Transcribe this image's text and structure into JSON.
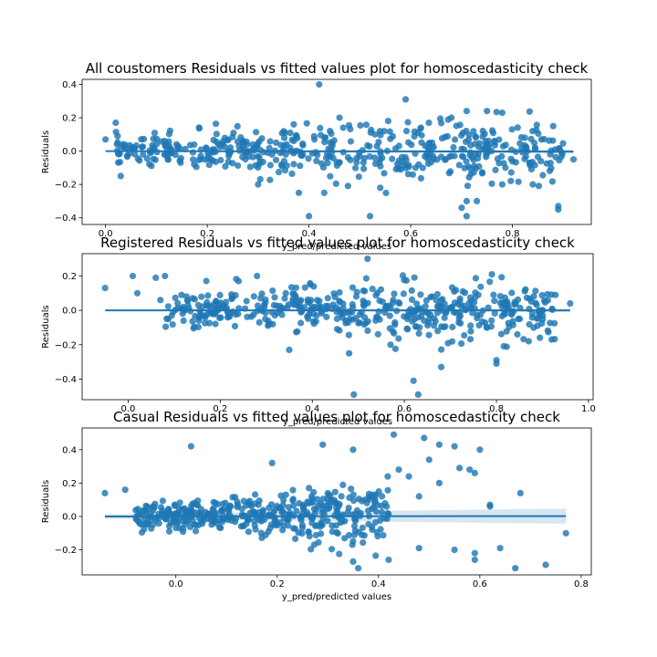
{
  "chart_data": [
    {
      "type": "scatter",
      "title": "All coustomers Residuals vs fitted values plot for homoscedasticity check",
      "xlabel": "y_pred/predicted values",
      "ylabel": "Residuals",
      "xlim": [
        -0.046,
        0.955
      ],
      "ylim": [
        -0.44,
        0.43
      ],
      "xticks": [
        0.0,
        0.2,
        0.4,
        0.6,
        0.8
      ],
      "yticks": [
        -0.4,
        -0.2,
        0.0,
        0.2,
        0.4
      ],
      "fit_line": {
        "x": [
          0.0,
          0.92
        ],
        "y": [
          0.0,
          -0.003
        ],
        "ci": 0.012
      },
      "color": "#1f77b4",
      "highlight_points": [
        [
          0.0,
          0.07
        ],
        [
          0.02,
          0.17
        ],
        [
          0.42,
          0.4
        ],
        [
          0.59,
          0.31
        ],
        [
          0.4,
          -0.39
        ],
        [
          0.52,
          -0.39
        ],
        [
          0.7,
          -0.34
        ],
        [
          0.71,
          -0.39
        ],
        [
          0.71,
          -0.3
        ],
        [
          0.73,
          -0.3
        ],
        [
          0.89,
          -0.33
        ],
        [
          0.89,
          -0.35
        ],
        [
          0.92,
          -0.05
        ],
        [
          0.75,
          0.24
        ],
        [
          0.78,
          0.23
        ],
        [
          0.71,
          0.24
        ],
        [
          0.54,
          -0.22
        ],
        [
          0.46,
          0.2
        ],
        [
          0.37,
          0.16
        ],
        [
          0.38,
          -0.25
        ],
        [
          0.43,
          -0.25
        ],
        [
          0.3,
          -0.2
        ],
        [
          0.88,
          0.15
        ],
        [
          0.84,
          -0.2
        ],
        [
          0.78,
          -0.2
        ],
        [
          0.68,
          0.2
        ],
        [
          0.62,
          0.14
        ]
      ],
      "n_random": 500,
      "noise": {
        "x_range": [
          0.02,
          0.9
        ],
        "sd": [
          [
            0.0,
            0.04
          ],
          [
            0.3,
            0.07
          ],
          [
            0.6,
            0.09
          ],
          [
            0.9,
            0.08
          ]
        ]
      }
    },
    {
      "type": "scatter",
      "title": "Registered Residuals vs fitted values plot for homoscedasticity check",
      "xlabel": "y_pred/predicted values",
      "ylabel": "Residuals",
      "xlim": [
        -0.1,
        1.01
      ],
      "ylim": [
        -0.52,
        0.33
      ],
      "xticks": [
        0.0,
        0.2,
        0.4,
        0.6,
        0.8,
        1.0
      ],
      "yticks": [
        -0.4,
        -0.2,
        0.0,
        0.2
      ],
      "fit_line": {
        "x": [
          -0.05,
          0.96
        ],
        "y": [
          0.0,
          0.0
        ],
        "ci": 0.01
      },
      "color": "#1f77b4",
      "highlight_points": [
        [
          -0.05,
          0.13
        ],
        [
          0.01,
          0.2
        ],
        [
          0.02,
          0.1
        ],
        [
          0.08,
          0.2
        ],
        [
          0.07,
          0.06
        ],
        [
          0.52,
          0.3
        ],
        [
          0.49,
          -0.49
        ],
        [
          0.62,
          -0.41
        ],
        [
          0.63,
          -0.49
        ],
        [
          0.48,
          -0.25
        ],
        [
          0.8,
          -0.31
        ],
        [
          0.8,
          -0.29
        ],
        [
          0.96,
          0.04
        ],
        [
          0.92,
          -0.17
        ],
        [
          0.87,
          -0.18
        ],
        [
          0.79,
          0.21
        ],
        [
          0.28,
          0.2
        ],
        [
          0.24,
          0.17
        ],
        [
          0.68,
          -0.33
        ],
        [
          0.06,
          0.19
        ],
        [
          0.14,
          0.07
        ],
        [
          0.35,
          -0.23
        ],
        [
          0.57,
          -0.2
        ]
      ],
      "n_random": 480,
      "noise": {
        "x_range": [
          0.08,
          0.93
        ],
        "sd": [
          [
            0.0,
            0.05
          ],
          [
            0.3,
            0.06
          ],
          [
            0.6,
            0.08
          ],
          [
            0.9,
            0.08
          ]
        ]
      }
    },
    {
      "type": "scatter",
      "title": "Casual Residuals vs fitted values plot for homoscedasticity check",
      "xlabel": "y_pred/predicted values",
      "ylabel": "Residuals",
      "xlim": [
        -0.185,
        0.82
      ],
      "ylim": [
        -0.35,
        0.53
      ],
      "xticks": [
        0.0,
        0.2,
        0.4,
        0.6,
        0.8
      ],
      "yticks": [
        -0.2,
        0.0,
        0.2,
        0.4
      ],
      "fit_line": {
        "x": [
          -0.14,
          0.77
        ],
        "y": [
          0.0,
          0.002
        ],
        "ci": 0.045
      },
      "color": "#1f77b4",
      "highlight_points": [
        [
          -0.14,
          0.14
        ],
        [
          -0.1,
          0.16
        ],
        [
          0.03,
          0.42
        ],
        [
          0.19,
          0.32
        ],
        [
          0.29,
          0.43
        ],
        [
          0.35,
          0.4
        ],
        [
          0.43,
          0.49
        ],
        [
          0.49,
          0.47
        ],
        [
          0.52,
          0.43
        ],
        [
          0.55,
          0.42
        ],
        [
          0.6,
          0.4
        ],
        [
          0.56,
          0.29
        ],
        [
          0.58,
          0.28
        ],
        [
          0.59,
          0.26
        ],
        [
          0.62,
          0.07
        ],
        [
          0.68,
          0.14
        ],
        [
          0.77,
          -0.1
        ],
        [
          0.73,
          -0.29
        ],
        [
          0.67,
          -0.31
        ],
        [
          0.64,
          -0.19
        ],
        [
          0.59,
          -0.22
        ],
        [
          0.59,
          -0.26
        ],
        [
          0.55,
          -0.2
        ],
        [
          0.48,
          -0.19
        ],
        [
          0.42,
          -0.26
        ],
        [
          0.36,
          -0.31
        ],
        [
          0.35,
          -0.27
        ],
        [
          0.5,
          0.34
        ],
        [
          0.46,
          0.24
        ],
        [
          0.44,
          0.28
        ],
        [
          0.52,
          0.2
        ],
        [
          0.48,
          0.12
        ],
        [
          0.62,
          0.06
        ]
      ],
      "n_random": 420,
      "noise": {
        "x_range": [
          -0.08,
          0.42
        ],
        "sd": [
          [
            -0.1,
            0.04
          ],
          [
            0.1,
            0.05
          ],
          [
            0.3,
            0.08
          ],
          [
            0.45,
            0.12
          ]
        ]
      }
    }
  ]
}
